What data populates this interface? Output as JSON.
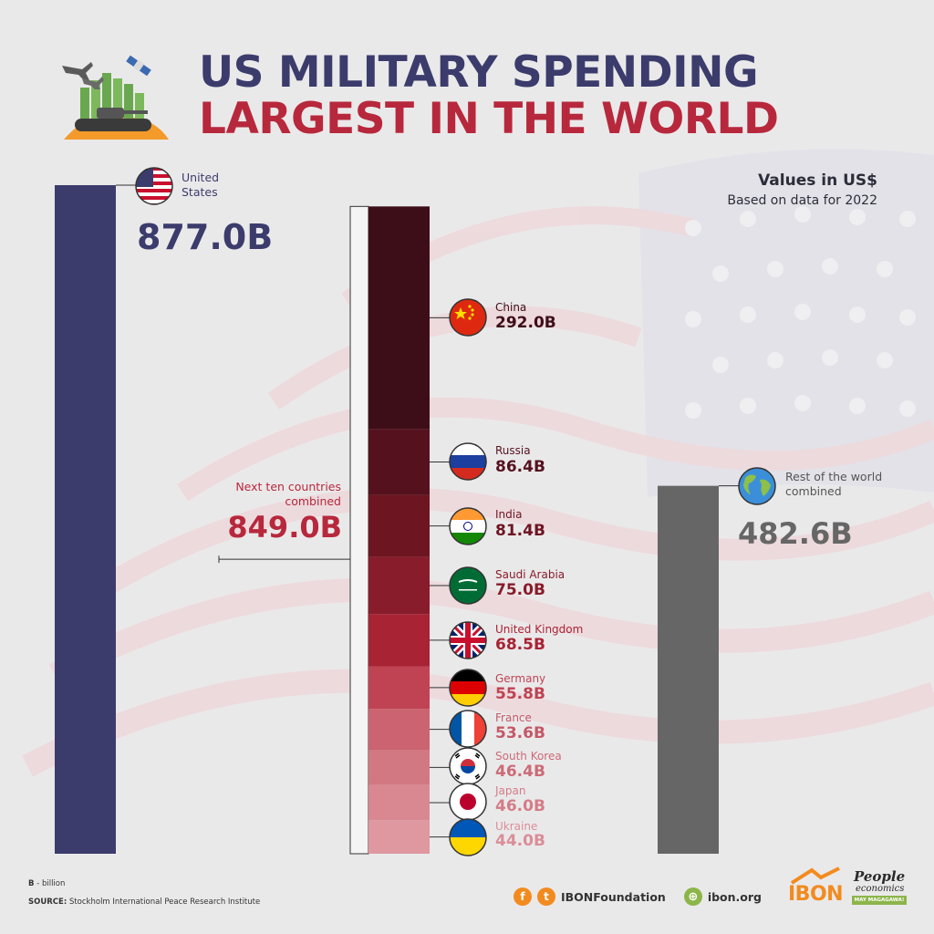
{
  "header": {
    "title_line1": "US MILITARY SPENDING",
    "title_line2": "LARGEST IN THE WORLD",
    "units": "Values in US$",
    "basis": "Based on data for 2022"
  },
  "colors": {
    "us_bar": "#3b3c6c",
    "rest_bar": "#666666",
    "accent_red": "#b7283c",
    "navy": "#3b3c6c",
    "background": "#eae9ea"
  },
  "chart_data": {
    "type": "bar",
    "unit": "billion US$",
    "year": 2022,
    "categories": [
      "United States",
      "Next ten countries combined",
      "Rest of the world combined"
    ],
    "values": [
      877.0,
      849.0,
      482.6
    ],
    "labels": {
      "us_name": "United States",
      "us_value": "877.0B",
      "next_name": "Next ten countries combined",
      "next_value": "849.0B",
      "rest_name": "Rest of the world combined",
      "rest_value": "482.6B"
    },
    "stack": [
      {
        "country": "China",
        "value": 292.0,
        "label": "292.0B",
        "color": "#3e0e18",
        "text_color": "#3e0e18",
        "icon": "china-flag-icon"
      },
      {
        "country": "Russia",
        "value": 86.4,
        "label": "86.4B",
        "color": "#55121e",
        "text_color": "#55121e",
        "icon": "russia-flag-icon"
      },
      {
        "country": "India",
        "value": 81.4,
        "label": "81.4B",
        "color": "#6e1522",
        "text_color": "#6e1522",
        "icon": "india-flag-icon"
      },
      {
        "country": "Saudi Arabia",
        "value": 75.0,
        "label": "75.0B",
        "color": "#891c2a",
        "text_color": "#891c2a",
        "icon": "saudi-arabia-flag-icon"
      },
      {
        "country": "United Kingdom",
        "value": 68.5,
        "label": "68.5B",
        "color": "#a82334",
        "text_color": "#a82334",
        "icon": "united-kingdom-flag-icon"
      },
      {
        "country": "Germany",
        "value": 55.8,
        "label": "55.8B",
        "color": "#bf4352",
        "text_color": "#bf4352",
        "icon": "germany-flag-icon"
      },
      {
        "country": "France",
        "value": 53.6,
        "label": "53.6B",
        "color": "#cb6470",
        "text_color": "#c45866",
        "icon": "france-flag-icon"
      },
      {
        "country": "South Korea",
        "value": 46.4,
        "label": "46.4B",
        "color": "#d27883",
        "text_color": "#cc6b77",
        "icon": "south-korea-flag-icon"
      },
      {
        "country": "Japan",
        "value": 46.0,
        "label": "46.0B",
        "color": "#d98892",
        "text_color": "#d47c87",
        "icon": "japan-flag-icon"
      },
      {
        "country": "Ukraine",
        "value": 44.0,
        "label": "44.0B",
        "color": "#df97a0",
        "text_color": "#da8e98",
        "icon": "ukraine-flag-icon"
      }
    ]
  },
  "icons": {
    "header": "military-spending-illustration-icon",
    "us": "united-states-flag-icon",
    "rest": "globe-icon"
  },
  "footer": {
    "note_b": "B",
    "note_text": " - billion",
    "source_label": "SOURCE:",
    "source_text": " Stockholm International Peace Research Institute",
    "social_handle": "IBONFoundation",
    "website": "ibon.org",
    "logo_ibon": "IBON",
    "logo_pe_line1": "People",
    "logo_pe_line2": "economics",
    "logo_pe_tag": "MAY MAGAGAWA!"
  }
}
